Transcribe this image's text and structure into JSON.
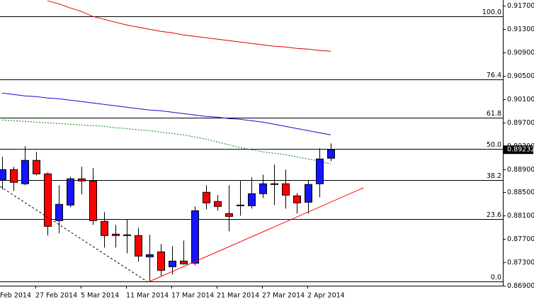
{
  "chart_data": {
    "type": "candlestick",
    "categories": [
      "Feb 2014",
      null,
      null,
      null,
      "27 Feb 2014",
      null,
      null,
      null,
      "5 Mar 2014",
      null,
      null,
      null,
      "11 Mar 2014",
      null,
      null,
      null,
      "17 Mar 2014",
      null,
      null,
      null,
      "21 Mar 2014",
      null,
      null,
      null,
      "27 Mar 2014",
      null,
      null,
      null,
      "2 Apr 2014",
      null
    ],
    "open": [
      0.88709,
      0.88891,
      0.88648,
      0.89049,
      0.88818,
      0.88016,
      0.88283,
      0.88733,
      0.88696,
      0.88003,
      0.87784,
      0.87772,
      0.8776,
      0.87395,
      0.8748,
      0.87225,
      0.87322,
      0.87286,
      0.88502,
      0.88344,
      0.88137,
      0.88283,
      0.88271,
      0.88478,
      0.88636,
      0.88648,
      0.88441,
      0.88332,
      0.88648,
      0.89086
    ],
    "high": [
      0.8911,
      0.8894,
      0.89292,
      0.89195,
      0.88842,
      0.88624,
      0.88769,
      0.8894,
      0.88915,
      0.88161,
      0.87943,
      0.8804,
      0.87894,
      0.87772,
      0.87614,
      0.87578,
      0.87675,
      0.88259,
      0.88624,
      0.88453,
      0.88624,
      0.88696,
      0.88757,
      0.88806,
      0.88976,
      0.88891,
      0.8849,
      0.88709,
      0.89256,
      0.89341
    ],
    "low": [
      0.88551,
      0.88526,
      0.88624,
      0.88794,
      0.8776,
      0.87797,
      0.88247,
      0.88465,
      0.87943,
      0.87553,
      0.87553,
      0.87456,
      0.8731,
      0.8697,
      0.87067,
      0.87091,
      0.87262,
      0.87249,
      0.8821,
      0.88186,
      0.87833,
      0.88101,
      0.88222,
      0.88405,
      0.88283,
      0.88222,
      0.88137,
      0.88137,
      0.88417,
      0.89037
    ],
    "close": [
      0.88891,
      0.88672,
      0.89049,
      0.88818,
      0.87918,
      0.88295,
      0.88733,
      0.88696,
      0.88016,
      0.8776,
      0.8776,
      0.8776,
      0.87408,
      0.87432,
      0.87164,
      0.87322,
      0.87274,
      0.88186,
      0.8832,
      0.88259,
      0.88088,
      0.88271,
      0.88478,
      0.88648,
      0.88648,
      0.88453,
      0.8832,
      0.88636,
      0.89073,
      0.89232
    ],
    "up_color": "#1414ff",
    "down_color": "#ff0000",
    "lines": [
      {
        "color": "#e00000",
        "dash": false,
        "values": [
          null,
          null,
          null,
          null,
          0.91785,
          0.91736,
          0.91664,
          0.91603,
          0.91518,
          0.91469,
          0.9142,
          0.91372,
          0.91335,
          0.91299,
          0.91262,
          0.91238,
          0.91201,
          0.91177,
          0.91153,
          0.91128,
          0.91104,
          0.9108,
          0.91056,
          0.91031,
          0.91007,
          0.90995,
          0.9097,
          0.90958,
          0.90934,
          0.90922
        ]
      },
      {
        "color": "#1010d0",
        "dash": false,
        "values": [
          0.90204,
          0.9018,
          0.90156,
          0.90144,
          0.90119,
          0.90107,
          0.90083,
          0.90058,
          0.90034,
          0.9001,
          0.89985,
          0.89961,
          0.89937,
          0.89912,
          0.899,
          0.89876,
          0.89852,
          0.89827,
          0.89803,
          0.89791,
          0.89767,
          0.89754,
          0.8973,
          0.89706,
          0.89669,
          0.89633,
          0.89596,
          0.8956,
          0.89523,
          0.89487
        ]
      },
      {
        "color": "#008000",
        "dash": true,
        "values": [
          0.89742,
          0.8973,
          0.89718,
          0.89706,
          0.89694,
          0.89681,
          0.89669,
          0.89657,
          0.89645,
          0.89633,
          0.89608,
          0.89596,
          0.89572,
          0.8956,
          0.89535,
          0.89511,
          0.89487,
          0.8945,
          0.89414,
          0.89365,
          0.89317,
          0.89268,
          0.89232,
          0.89195,
          0.89171,
          0.89146,
          0.8911,
          0.89073,
          0.89037,
          0.88988
        ]
      }
    ],
    "levels": [
      {
        "label": "100.0",
        "value": 0.91518
      },
      {
        "label": "76.4",
        "value": 0.90443
      },
      {
        "label": "61.8",
        "value": 0.89781
      },
      {
        "label": "50.0",
        "value": 0.89244
      },
      {
        "label": "38.2",
        "value": 0.88707
      },
      {
        "label": "23.6",
        "value": 0.88043
      },
      {
        "label": "0.0",
        "value": 0.8697
      }
    ],
    "last_price": 0.89232,
    "ylim": [
      0.869,
      0.918
    ],
    "yticks": [
      {
        "value": 0.917,
        "label": "0.91700"
      },
      {
        "value": 0.913,
        "label": "0.91300"
      },
      {
        "value": 0.909,
        "label": "0.90900"
      },
      {
        "value": 0.905,
        "label": "0.90500"
      },
      {
        "value": 0.901,
        "label": "0.90100"
      },
      {
        "value": 0.897,
        "label": "0.89700"
      },
      {
        "value": 0.893,
        "label": "0.89300"
      },
      {
        "value": 0.889,
        "label": "0.88900"
      },
      {
        "value": 0.885,
        "label": "0.88500"
      },
      {
        "value": 0.881,
        "label": "0.88100"
      },
      {
        "value": 0.877,
        "label": "0.87700"
      },
      {
        "value": 0.873,
        "label": "0.87300"
      },
      {
        "value": 0.869,
        "label": "0.86900"
      }
    ],
    "grid": false
  }
}
